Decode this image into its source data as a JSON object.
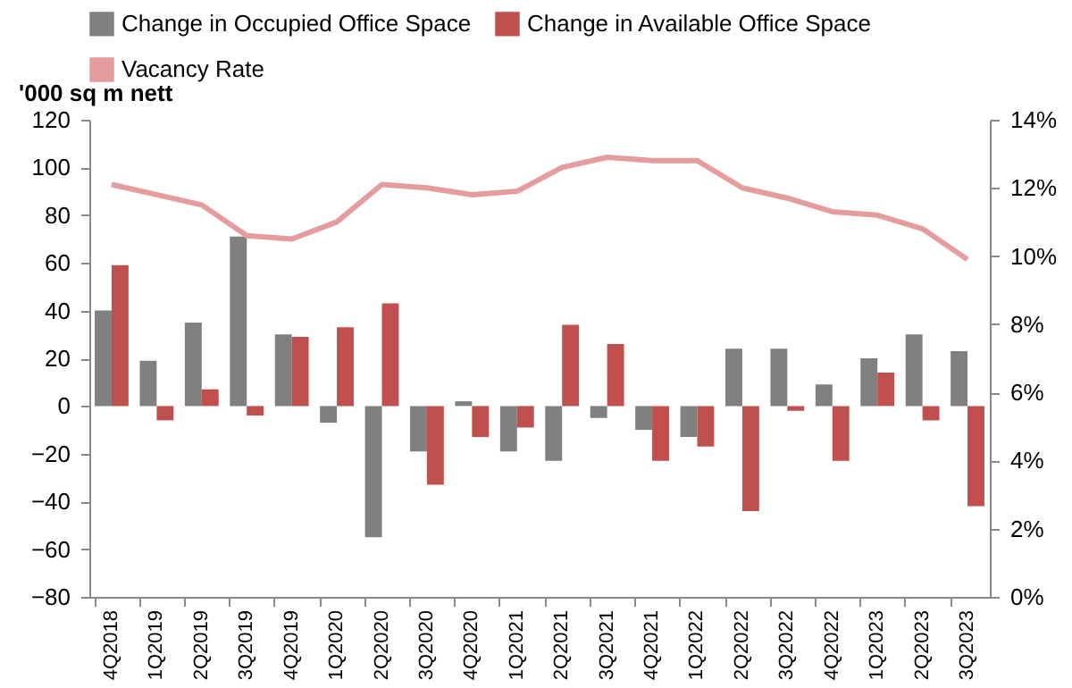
{
  "chart_data": {
    "type": "bar",
    "ylabel": "'000 sq m nett",
    "legend": "top",
    "categories": [
      "4Q2018",
      "1Q2019",
      "2Q2019",
      "3Q2019",
      "4Q2019",
      "1Q2020",
      "2Q2020",
      "3Q2020",
      "4Q2020",
      "1Q2021",
      "2Q2021",
      "3Q2021",
      "4Q2021",
      "1Q2022",
      "2Q2022",
      "3Q2022",
      "4Q2022",
      "1Q2023",
      "2Q2023",
      "3Q2023"
    ],
    "series": [
      {
        "name": "Change in Occupied Office Space",
        "color": "#808080",
        "values": [
          40,
          19,
          35,
          71,
          30,
          -7,
          -55,
          -19,
          2,
          -19,
          -23,
          -5,
          -10,
          -13,
          24,
          24,
          9,
          20,
          30,
          23
        ]
      },
      {
        "name": "Change in Available Office Space",
        "color": "#c0504d",
        "values": [
          59,
          -6,
          7,
          -4,
          29,
          33,
          43,
          -33,
          -13,
          -9,
          34,
          26,
          -23,
          -17,
          -44,
          -2,
          -23,
          14,
          -6,
          -42
        ]
      },
      {
        "name": "Vacancy Rate",
        "type": "line",
        "axis": "y2",
        "color": "#e59c9c",
        "values": [
          12.1,
          11.8,
          11.5,
          10.6,
          10.5,
          11.0,
          12.1,
          12.0,
          11.8,
          11.9,
          12.6,
          12.9,
          12.8,
          12.8,
          12.0,
          11.7,
          11.3,
          11.2,
          10.8,
          9.9
        ]
      }
    ],
    "ylim": [
      -80,
      120
    ],
    "yticks": [
      -80,
      -60,
      -40,
      -20,
      0,
      20,
      40,
      60,
      80,
      100,
      120
    ],
    "y2lim": [
      0,
      14
    ],
    "y2ticks": [
      {
        "value": 0,
        "label": "0%"
      },
      {
        "value": 2,
        "label": "2%"
      },
      {
        "value": 4,
        "label": "4%"
      },
      {
        "value": 6,
        "label": "6%"
      },
      {
        "value": 8,
        "label": "8%"
      },
      {
        "value": 10,
        "label": "10%"
      },
      {
        "value": 12,
        "label": "12%"
      },
      {
        "value": 14,
        "label": "14%"
      }
    ],
    "grid": false
  }
}
